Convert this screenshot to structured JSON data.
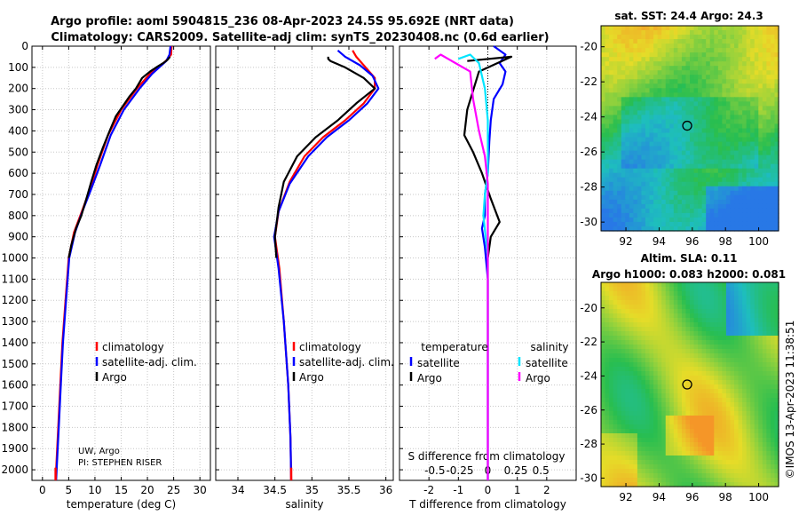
{
  "chart_data": [
    {
      "type": "line",
      "title": "Argo profile: aoml 5904815_236 08-Apr-2023 24.5S 95.692E (NRT data)",
      "subtitle": "Climatology: CARS2009. Satellite-adj clim: synTS_20230408.nc (0.6d earlier)",
      "xlabel": "temperature (deg C)",
      "ylabel": "",
      "xlim": [
        -2,
        32
      ],
      "ylim": [
        2050,
        0
      ],
      "xticks": [
        "0",
        "5",
        "10",
        "15",
        "20",
        "25",
        "30"
      ],
      "yticks": [
        "0",
        "100",
        "200",
        "300",
        "400",
        "500",
        "600",
        "700",
        "800",
        "900",
        "1000",
        "1100",
        "1200",
        "1300",
        "1400",
        "1500",
        "1600",
        "1700",
        "1800",
        "1900",
        "2000"
      ],
      "legend": [
        "climatology",
        "satellite-adj. clim.",
        "Argo"
      ],
      "note": [
        "UW, Argo",
        "PI: STEPHEN RISER"
      ],
      "series": [
        {
          "name": "climatology",
          "color": "#ff0000",
          "points": [
            [
              24.6,
              0
            ],
            [
              24.5,
              40
            ],
            [
              23.5,
              70
            ],
            [
              20.5,
              130
            ],
            [
              18,
              200
            ],
            [
              15,
              300
            ],
            [
              12.5,
              420
            ],
            [
              10.5,
              560
            ],
            [
              9,
              680
            ],
            [
              7.5,
              780
            ],
            [
              6,
              880
            ],
            [
              5,
              1000
            ],
            [
              4.4,
              1200
            ],
            [
              3.8,
              1400
            ],
            [
              3.4,
              1600
            ],
            [
              3.0,
              1800
            ],
            [
              2.6,
              2000
            ],
            [
              2.5,
              2050
            ]
          ]
        },
        {
          "name": "satellite-adj. clim.",
          "color": "#0000ff",
          "points": [
            [
              24.4,
              0
            ],
            [
              24.2,
              40
            ],
            [
              23.6,
              70
            ],
            [
              20.9,
              130
            ],
            [
              18.5,
              200
            ],
            [
              15.5,
              300
            ],
            [
              13,
              420
            ],
            [
              11,
              560
            ],
            [
              9.2,
              680
            ],
            [
              7.6,
              780
            ],
            [
              6.2,
              880
            ],
            [
              5.1,
              1000
            ],
            [
              4.5,
              1200
            ],
            [
              3.9,
              1400
            ],
            [
              3.5,
              1600
            ],
            [
              3.1,
              1800
            ],
            [
              2.7,
              2000
            ],
            [
              2.6,
              2050
            ]
          ]
        },
        {
          "name": "Argo",
          "color": "#000000",
          "points": [
            [
              24.3,
              50
            ],
            [
              23.8,
              65
            ],
            [
              23,
              80
            ],
            [
              22,
              95
            ],
            [
              20.5,
              120
            ],
            [
              19,
              150
            ],
            [
              17.8,
              200
            ],
            [
              16.5,
              240
            ],
            [
              15.4,
              280
            ],
            [
              14,
              330
            ],
            [
              12.8,
              400
            ],
            [
              11.5,
              480
            ],
            [
              10.3,
              560
            ],
            [
              9.3,
              640
            ],
            [
              8.6,
              700
            ],
            [
              7.4,
              800
            ],
            [
              6.4,
              860
            ],
            [
              5.5,
              940
            ],
            [
              5.0,
              1000
            ]
          ]
        }
      ]
    },
    {
      "type": "line",
      "xlabel": "salinity",
      "xlim": [
        33.7,
        36.1
      ],
      "ylim": [
        2050,
        0
      ],
      "xticks": [
        "34",
        "34.5",
        "35",
        "35.5",
        "36"
      ],
      "legend": [
        "climatology",
        "satellite-adj. clim.",
        "Argo"
      ],
      "series": [
        {
          "name": "climatology",
          "color": "#ff0000",
          "points": [
            [
              35.55,
              20
            ],
            [
              35.6,
              50
            ],
            [
              35.7,
              90
            ],
            [
              35.85,
              150
            ],
            [
              35.85,
              200
            ],
            [
              35.7,
              270
            ],
            [
              35.45,
              350
            ],
            [
              35.15,
              430
            ],
            [
              34.9,
              520
            ],
            [
              34.7,
              640
            ],
            [
              34.55,
              780
            ],
            [
              34.5,
              900
            ],
            [
              34.56,
              1050
            ],
            [
              34.62,
              1300
            ],
            [
              34.68,
              1600
            ],
            [
              34.71,
              1850
            ],
            [
              34.72,
              2050
            ]
          ]
        },
        {
          "name": "satellite-adj. clim.",
          "color": "#0000ff",
          "points": [
            [
              35.35,
              20
            ],
            [
              35.45,
              50
            ],
            [
              35.65,
              90
            ],
            [
              35.82,
              140
            ],
            [
              35.9,
              200
            ],
            [
              35.75,
              270
            ],
            [
              35.5,
              350
            ],
            [
              35.2,
              430
            ],
            [
              34.95,
              520
            ],
            [
              34.7,
              650
            ],
            [
              34.55,
              780
            ],
            [
              34.49,
              900
            ],
            [
              34.55,
              1050
            ],
            [
              34.62,
              1300
            ],
            [
              34.68,
              1600
            ],
            [
              34.71,
              1850
            ],
            [
              34.72,
              2050
            ]
          ]
        },
        {
          "name": "Argo",
          "color": "#000000",
          "points": [
            [
              35.22,
              50
            ],
            [
              35.22,
              60
            ],
            [
              35.25,
              70
            ],
            [
              35.45,
              100
            ],
            [
              35.7,
              150
            ],
            [
              35.85,
              200
            ],
            [
              35.6,
              270
            ],
            [
              35.35,
              350
            ],
            [
              35.05,
              430
            ],
            [
              34.8,
              520
            ],
            [
              34.62,
              640
            ],
            [
              34.55,
              760
            ],
            [
              34.5,
              900
            ],
            [
              34.52,
              1000
            ]
          ]
        }
      ]
    },
    {
      "type": "line",
      "xlabel": "T difference from climatology",
      "x2label": "S difference from climatology",
      "xlim": [
        -3,
        3
      ],
      "ylim": [
        2050,
        0
      ],
      "xticks": [
        "-2",
        "-1",
        "0",
        "1",
        "2"
      ],
      "x2ticks": [
        "-0.5",
        "-0.25",
        "0",
        "0.25",
        "0.5"
      ],
      "legend_titles": [
        "temperature",
        "salinity"
      ],
      "legend": [
        "satellite",
        "Argo",
        "satellite",
        "Argo"
      ],
      "series": [
        {
          "name": "temperature satellite",
          "color": "#0000ff",
          "points": [
            [
              0.2,
              0
            ],
            [
              0.6,
              40
            ],
            [
              0.4,
              80
            ],
            [
              0.6,
              120
            ],
            [
              0.5,
              180
            ],
            [
              0.2,
              250
            ],
            [
              0.1,
              350
            ],
            [
              0.05,
              450
            ],
            [
              0,
              600
            ],
            [
              -0.1,
              700
            ],
            [
              -0.1,
              800
            ],
            [
              -0.2,
              860
            ],
            [
              -0.1,
              950
            ],
            [
              0,
              1100
            ],
            [
              0,
              1500
            ],
            [
              0,
              2050
            ]
          ]
        },
        {
          "name": "temperature Argo",
          "color": "#000000",
          "points": [
            [
              -0.7,
              70
            ],
            [
              0.8,
              50
            ],
            [
              -0.3,
              120
            ],
            [
              -0.7,
              300
            ],
            [
              -0.8,
              420
            ],
            [
              -0.5,
              500
            ],
            [
              -0.2,
              600
            ],
            [
              0.1,
              720
            ],
            [
              0.4,
              830
            ],
            [
              0.1,
              900
            ],
            [
              0,
              1000
            ]
          ]
        },
        {
          "name": "salinity satellite",
          "color": "#00e5ff",
          "points": [
            [
              -1.0,
              60
            ],
            [
              -0.6,
              40
            ],
            [
              -0.3,
              80
            ],
            [
              -0.1,
              200
            ],
            [
              0,
              350
            ],
            [
              0,
              600
            ],
            [
              -0.1,
              700
            ],
            [
              -0.15,
              800
            ],
            [
              0,
              1000
            ],
            [
              0,
              2050
            ]
          ]
        },
        {
          "name": "salinity Argo",
          "color": "#ff00ff",
          "points": [
            [
              -1.8,
              60
            ],
            [
              -1.6,
              40
            ],
            [
              -0.6,
              120
            ],
            [
              -0.5,
              250
            ],
            [
              -0.3,
              400
            ],
            [
              -0.1,
              520
            ],
            [
              0,
              650
            ],
            [
              0,
              800
            ],
            [
              0,
              1000
            ],
            [
              0,
              2050
            ]
          ]
        }
      ]
    },
    {
      "type": "heatmap",
      "title": "sat. SST: 24.4 Argo: 24.3",
      "xlim": [
        90.5,
        101.2
      ],
      "ylim": [
        -30.5,
        -18.8
      ],
      "xticks": [
        "92",
        "94",
        "96",
        "98",
        "100"
      ],
      "yticks": [
        "-20",
        "-22",
        "-24",
        "-26",
        "-28",
        "-30"
      ],
      "marker": [
        95.692,
        -24.5
      ]
    },
    {
      "type": "heatmap",
      "title": "Altim. SLA: 0.11",
      "subtitle": "Argo h1000: 0.083 h2000: 0.081",
      "xlim": [
        90.5,
        101.2
      ],
      "ylim": [
        -30.5,
        -18.5
      ],
      "xticks": [
        "92",
        "94",
        "96",
        "98",
        "100"
      ],
      "yticks": [
        "-20",
        "-22",
        "-24",
        "-26",
        "-28",
        "-30"
      ],
      "marker": [
        95.692,
        -24.5
      ]
    }
  ],
  "header": {
    "line1": "Argo profile: aoml 5904815_236 08-Apr-2023 24.5S 95.692E (NRT data)",
    "line2": "Climatology: CARS2009. Satellite-adj clim: synTS_20230408.nc (0.6d earlier)"
  },
  "credit": "©IMOS 13-Apr-2023 11:38:51",
  "colors": {
    "clim": "#ff0000",
    "sat": "#0000ff",
    "argo": "#000000",
    "cyan": "#00e5ff",
    "magenta": "#ff00ff"
  }
}
